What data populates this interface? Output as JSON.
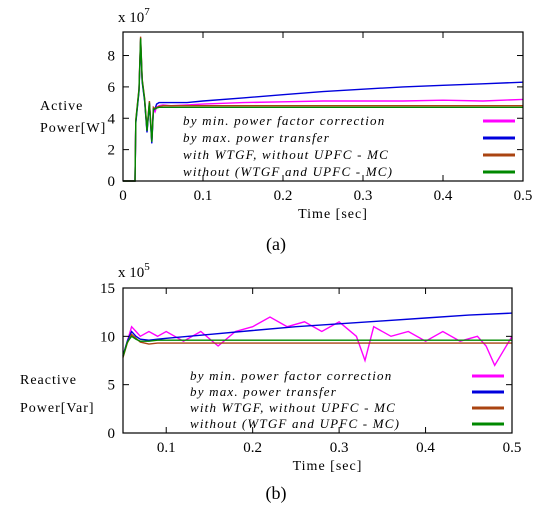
{
  "chart_data": [
    {
      "type": "line",
      "panel_label": "(a)",
      "multiplier": "x 10",
      "multiplier_exp": "7",
      "ylabel_line1": "Active",
      "ylabel_line2": "Power[W]",
      "xlabel": "Time [sec]",
      "xlim": [
        0,
        0.5
      ],
      "ylim": [
        0,
        9.5
      ],
      "xticks": [
        0,
        0.1,
        0.2,
        0.3,
        0.4,
        0.5
      ],
      "xtick_labels": [
        "0",
        "0.1",
        "0.2",
        "0.3",
        "0.4",
        "0.5"
      ],
      "yticks": [
        0,
        2,
        4,
        6,
        8
      ],
      "ytick_labels": [
        "0",
        "2",
        "4",
        "6",
        "8"
      ],
      "legend_position": "bottom-right",
      "series": [
        {
          "name": "by min. power factor correction",
          "color": "#ff00ff",
          "x": [
            0,
            0.015,
            0.016,
            0.02,
            0.022,
            0.024,
            0.027,
            0.03,
            0.033,
            0.036,
            0.038,
            0.04,
            0.042,
            0.045,
            0.05,
            0.06,
            0.08,
            0.1,
            0.15,
            0.2,
            0.25,
            0.3,
            0.35,
            0.4,
            0.45,
            0.5
          ],
          "y": [
            0,
            0,
            3.8,
            5.8,
            9.0,
            6.4,
            5.2,
            3.2,
            5.0,
            2.5,
            4.6,
            4.4,
            4.7,
            4.8,
            4.85,
            4.8,
            4.85,
            4.9,
            5.0,
            5.05,
            5.1,
            5.1,
            5.1,
            5.15,
            5.1,
            5.2
          ]
        },
        {
          "name": "by max. power transfer",
          "color": "#0000dd",
          "x": [
            0,
            0.015,
            0.016,
            0.02,
            0.022,
            0.024,
            0.027,
            0.03,
            0.033,
            0.036,
            0.038,
            0.04,
            0.042,
            0.045,
            0.05,
            0.06,
            0.08,
            0.1,
            0.15,
            0.2,
            0.25,
            0.3,
            0.35,
            0.4,
            0.45,
            0.5
          ],
          "y": [
            0,
            0,
            3.7,
            5.7,
            8.9,
            6.3,
            5.1,
            3.1,
            4.9,
            2.4,
            4.5,
            4.6,
            4.9,
            5.0,
            5.0,
            5.0,
            5.0,
            5.1,
            5.3,
            5.5,
            5.7,
            5.85,
            6.0,
            6.1,
            6.2,
            6.3
          ]
        },
        {
          "name": "with WTGF, without UPFC - MC",
          "color": "#aa4411",
          "x": [
            0,
            0.015,
            0.016,
            0.02,
            0.022,
            0.024,
            0.027,
            0.03,
            0.033,
            0.036,
            0.038,
            0.04,
            0.042,
            0.045,
            0.05,
            0.06,
            0.08,
            0.1,
            0.2,
            0.3,
            0.4,
            0.5
          ],
          "y": [
            0,
            0,
            3.9,
            5.9,
            9.2,
            6.5,
            5.3,
            3.3,
            5.1,
            2.6,
            4.7,
            4.6,
            4.7,
            4.75,
            4.8,
            4.8,
            4.8,
            4.8,
            4.8,
            4.8,
            4.8,
            4.8
          ]
        },
        {
          "name": "without (WTGF and UPFC - MC)",
          "color": "#008800",
          "x": [
            0,
            0.015,
            0.016,
            0.02,
            0.022,
            0.024,
            0.027,
            0.03,
            0.033,
            0.036,
            0.038,
            0.04,
            0.042,
            0.045,
            0.05,
            0.06,
            0.08,
            0.1,
            0.2,
            0.3,
            0.4,
            0.5
          ],
          "y": [
            0,
            0,
            3.8,
            5.8,
            9.1,
            6.4,
            5.2,
            3.2,
            5.0,
            2.5,
            4.6,
            4.6,
            4.65,
            4.7,
            4.7,
            4.7,
            4.7,
            4.7,
            4.7,
            4.7,
            4.7,
            4.7
          ]
        }
      ]
    },
    {
      "type": "line",
      "panel_label": "(b)",
      "multiplier": "x 10",
      "multiplier_exp": "5",
      "ylabel_line1": "Reactive",
      "ylabel_line2": "Power[Var]",
      "xlabel": "Time [sec]",
      "xlim": [
        0.05,
        0.5
      ],
      "ylim": [
        0,
        15
      ],
      "xticks": [
        0.1,
        0.2,
        0.3,
        0.4,
        0.5
      ],
      "xtick_labels": [
        "0.1",
        "0.2",
        "0.3",
        "0.4",
        "0.5"
      ],
      "yticks": [
        0,
        5,
        10,
        15
      ],
      "ytick_labels": [
        "0",
        "5",
        "10",
        "15"
      ],
      "legend_position": "bottom-right",
      "series": [
        {
          "name": "by min. power factor correction",
          "color": "#ff00ff",
          "x": [
            0.05,
            0.055,
            0.06,
            0.065,
            0.07,
            0.08,
            0.09,
            0.1,
            0.12,
            0.14,
            0.16,
            0.18,
            0.2,
            0.22,
            0.24,
            0.26,
            0.28,
            0.3,
            0.32,
            0.33,
            0.34,
            0.36,
            0.38,
            0.4,
            0.42,
            0.44,
            0.46,
            0.47,
            0.48,
            0.49,
            0.5
          ],
          "y": [
            8.0,
            9.5,
            11.0,
            10.5,
            10.0,
            10.5,
            10.0,
            10.5,
            9.5,
            10.5,
            9.0,
            10.5,
            11.0,
            12.0,
            11.0,
            11.5,
            10.5,
            11.5,
            10.0,
            7.5,
            11.0,
            10.0,
            10.5,
            9.5,
            10.5,
            9.5,
            10.0,
            9.0,
            7.0,
            8.5,
            10.0
          ]
        },
        {
          "name": "by max. power transfer",
          "color": "#0000dd",
          "x": [
            0.05,
            0.055,
            0.06,
            0.065,
            0.07,
            0.08,
            0.09,
            0.1,
            0.15,
            0.2,
            0.25,
            0.3,
            0.35,
            0.4,
            0.45,
            0.5
          ],
          "y": [
            8.0,
            9.5,
            10.5,
            10.0,
            9.7,
            9.6,
            9.7,
            9.8,
            10.2,
            10.6,
            11.0,
            11.3,
            11.6,
            11.9,
            12.2,
            12.4
          ]
        },
        {
          "name": "with WTGF, without UPFC - MC",
          "color": "#aa4411",
          "x": [
            0.05,
            0.055,
            0.06,
            0.065,
            0.07,
            0.08,
            0.09,
            0.1,
            0.2,
            0.3,
            0.4,
            0.5
          ],
          "y": [
            7.8,
            9.3,
            10.2,
            9.8,
            9.4,
            9.2,
            9.3,
            9.3,
            9.3,
            9.3,
            9.3,
            9.3
          ]
        },
        {
          "name": "without (WTGF and UPFC - MC)",
          "color": "#008800",
          "x": [
            0.05,
            0.055,
            0.06,
            0.065,
            0.07,
            0.08,
            0.09,
            0.1,
            0.2,
            0.3,
            0.4,
            0.5
          ],
          "y": [
            7.9,
            9.4,
            10.0,
            9.7,
            9.5,
            9.5,
            9.6,
            9.6,
            9.6,
            9.6,
            9.6,
            9.6
          ]
        }
      ]
    }
  ]
}
